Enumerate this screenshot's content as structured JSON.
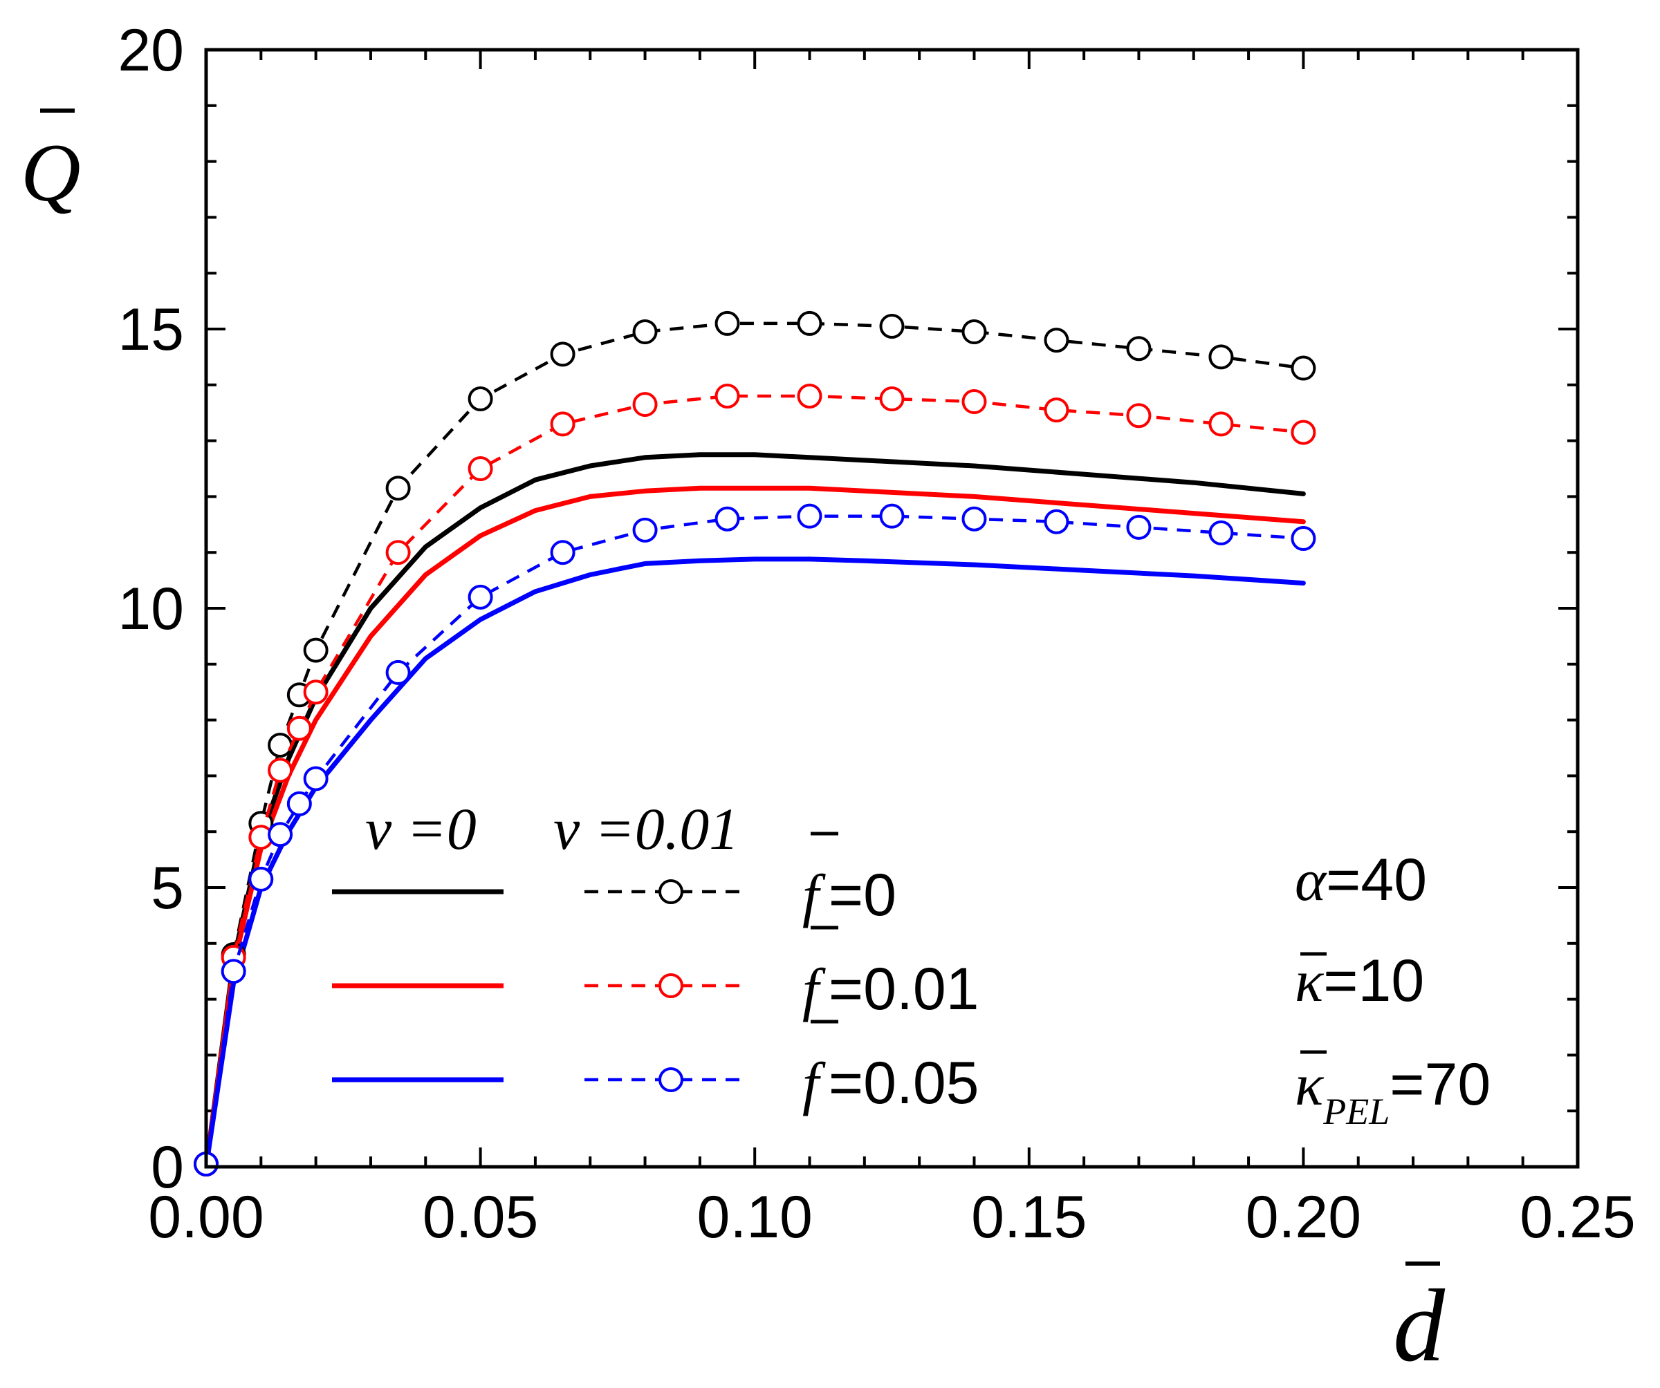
{
  "chart_data": {
    "type": "line",
    "title": "",
    "xlabel": "d",
    "ylabel": "Q",
    "xlim": [
      0,
      0.25
    ],
    "ylim": [
      0,
      20
    ],
    "x_ticks": [
      0.0,
      0.05,
      0.1,
      0.15,
      0.2,
      0.25
    ],
    "x_tick_labels": [
      "0.00",
      "0.05",
      "0.10",
      "0.15",
      "0.20",
      "0.25"
    ],
    "y_ticks": [
      0,
      5,
      10,
      15,
      20
    ],
    "y_tick_labels": [
      "0",
      "5",
      "10",
      "15",
      "20"
    ],
    "x_minor_step": 0.01,
    "y_minor_step": 1,
    "series": [
      {
        "name": "ν=0, f̄=0",
        "color": "#000000",
        "style": "solid",
        "marker": "none",
        "x": [
          0,
          0.005,
          0.01,
          0.015,
          0.02,
          0.03,
          0.04,
          0.05,
          0.06,
          0.07,
          0.08,
          0.09,
          0.1,
          0.11,
          0.12,
          0.14,
          0.16,
          0.18,
          0.2
        ],
        "y": [
          0,
          3.7,
          5.9,
          7.3,
          8.4,
          10.0,
          11.1,
          11.8,
          12.3,
          12.55,
          12.7,
          12.75,
          12.75,
          12.7,
          12.65,
          12.55,
          12.4,
          12.25,
          12.05
        ]
      },
      {
        "name": "ν=0, f̄=0.01",
        "color": "#ff0000",
        "style": "solid",
        "marker": "none",
        "x": [
          0,
          0.005,
          0.01,
          0.015,
          0.02,
          0.03,
          0.04,
          0.05,
          0.06,
          0.07,
          0.08,
          0.09,
          0.1,
          0.11,
          0.12,
          0.14,
          0.16,
          0.18,
          0.2
        ],
        "y": [
          0,
          3.6,
          5.7,
          7.0,
          8.0,
          9.5,
          10.6,
          11.3,
          11.75,
          12.0,
          12.1,
          12.15,
          12.15,
          12.15,
          12.1,
          12.0,
          11.85,
          11.7,
          11.55
        ]
      },
      {
        "name": "ν=0, f̄=0.05",
        "color": "#0000ff",
        "style": "solid",
        "marker": "none",
        "x": [
          0,
          0.005,
          0.01,
          0.015,
          0.02,
          0.03,
          0.04,
          0.05,
          0.06,
          0.07,
          0.08,
          0.09,
          0.1,
          0.11,
          0.12,
          0.14,
          0.16,
          0.18,
          0.2
        ],
        "y": [
          0,
          3.3,
          5.0,
          6.0,
          6.8,
          8.0,
          9.1,
          9.8,
          10.3,
          10.6,
          10.8,
          10.85,
          10.88,
          10.88,
          10.85,
          10.78,
          10.68,
          10.58,
          10.45
        ]
      },
      {
        "name": "ν=0.01, f̄=0",
        "color": "#000000",
        "style": "dashed",
        "marker": "circle",
        "x": [
          0,
          0.005,
          0.01,
          0.0135,
          0.017,
          0.02,
          0.035,
          0.05,
          0.065,
          0.08,
          0.095,
          0.11,
          0.125,
          0.14,
          0.155,
          0.17,
          0.185,
          0.2
        ],
        "y": [
          0.05,
          3.8,
          6.15,
          7.55,
          8.45,
          9.25,
          12.15,
          13.75,
          14.55,
          14.95,
          15.1,
          15.1,
          15.05,
          14.95,
          14.8,
          14.65,
          14.5,
          14.3
        ]
      },
      {
        "name": "ν=0.01, f̄=0.01",
        "color": "#ff0000",
        "style": "dashed",
        "marker": "circle",
        "x": [
          0,
          0.005,
          0.01,
          0.0135,
          0.017,
          0.02,
          0.035,
          0.05,
          0.065,
          0.08,
          0.095,
          0.11,
          0.125,
          0.14,
          0.155,
          0.17,
          0.185,
          0.2
        ],
        "y": [
          0.05,
          3.75,
          5.9,
          7.1,
          7.85,
          8.5,
          11.0,
          12.5,
          13.3,
          13.65,
          13.8,
          13.8,
          13.75,
          13.7,
          13.55,
          13.45,
          13.3,
          13.15
        ]
      },
      {
        "name": "ν=0.01, f̄=0.05",
        "color": "#0000ff",
        "style": "dashed",
        "marker": "circle",
        "x": [
          0,
          0.005,
          0.01,
          0.0135,
          0.017,
          0.02,
          0.035,
          0.05,
          0.065,
          0.08,
          0.095,
          0.11,
          0.125,
          0.14,
          0.155,
          0.17,
          0.185,
          0.2
        ],
        "y": [
          0.05,
          3.5,
          5.15,
          5.95,
          6.5,
          6.95,
          8.85,
          10.2,
          11.0,
          11.4,
          11.6,
          11.65,
          11.65,
          11.6,
          11.55,
          11.45,
          11.35,
          11.25
        ]
      }
    ],
    "legend": {
      "placement": "bottom-center",
      "col_headers": {
        "nu0": "ν =0",
        "nu001": "ν =0.01"
      },
      "rows": [
        {
          "f_label": "f",
          "f_value": "=0",
          "color": "#000000"
        },
        {
          "f_label": "f",
          "f_value": "=0.01",
          "color": "#ff0000"
        },
        {
          "f_label": "f",
          "f_value": "=0.05",
          "color": "#0000ff"
        }
      ]
    },
    "annotations": {
      "alpha": {
        "symbol": "α",
        "value": "=40"
      },
      "kappa": {
        "symbol": "κ",
        "value": "=10"
      },
      "kappa_pel": {
        "symbol": "κ",
        "subscript": "PEL",
        "value": "=70"
      }
    }
  }
}
